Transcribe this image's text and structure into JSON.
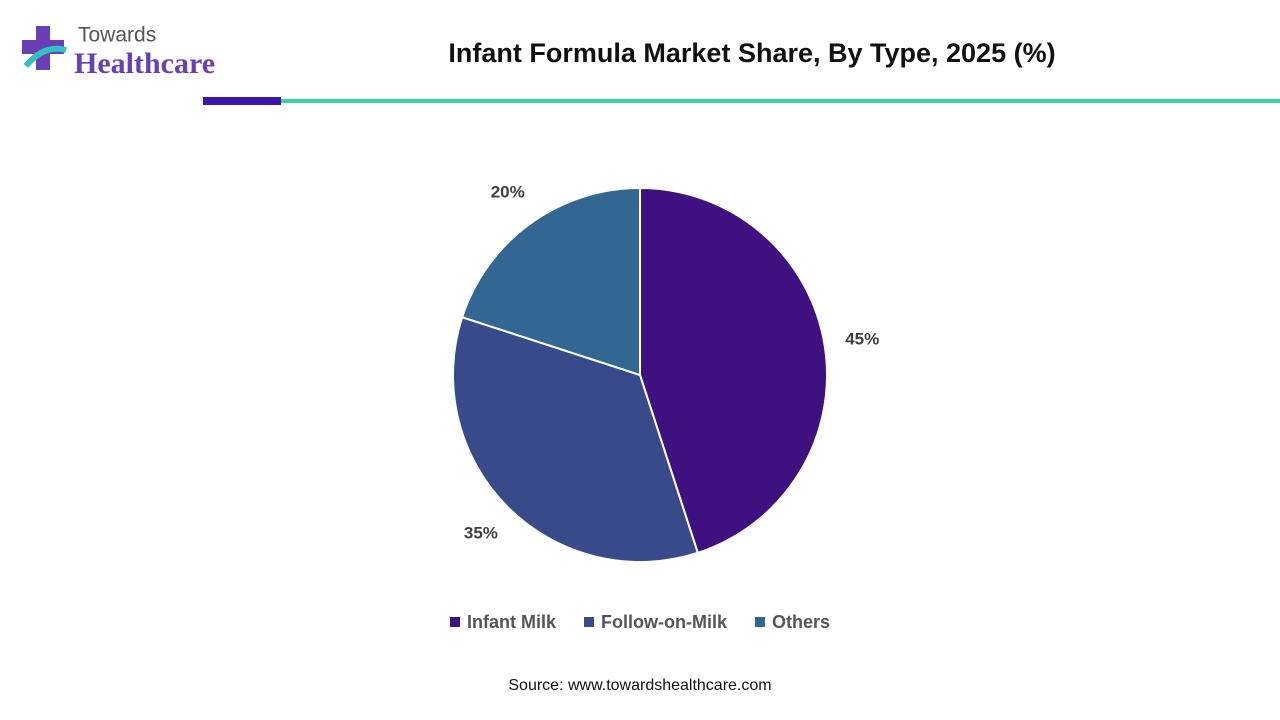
{
  "chart_data": {
    "type": "pie",
    "title": "Infant Formula Market Share, By Type, 2025 (%)",
    "categories": [
      "Infant Milk",
      "Follow-on-Milk",
      "Others"
    ],
    "values": [
      45,
      35,
      20
    ],
    "value_labels": [
      "45%",
      "35%",
      "20%"
    ],
    "colors": [
      "#3e1080",
      "#394a8b",
      "#336793"
    ],
    "source": "Source: www.towardshealthcare.com"
  },
  "logo": {
    "line1": "Towards",
    "line2": "Healthcare"
  }
}
